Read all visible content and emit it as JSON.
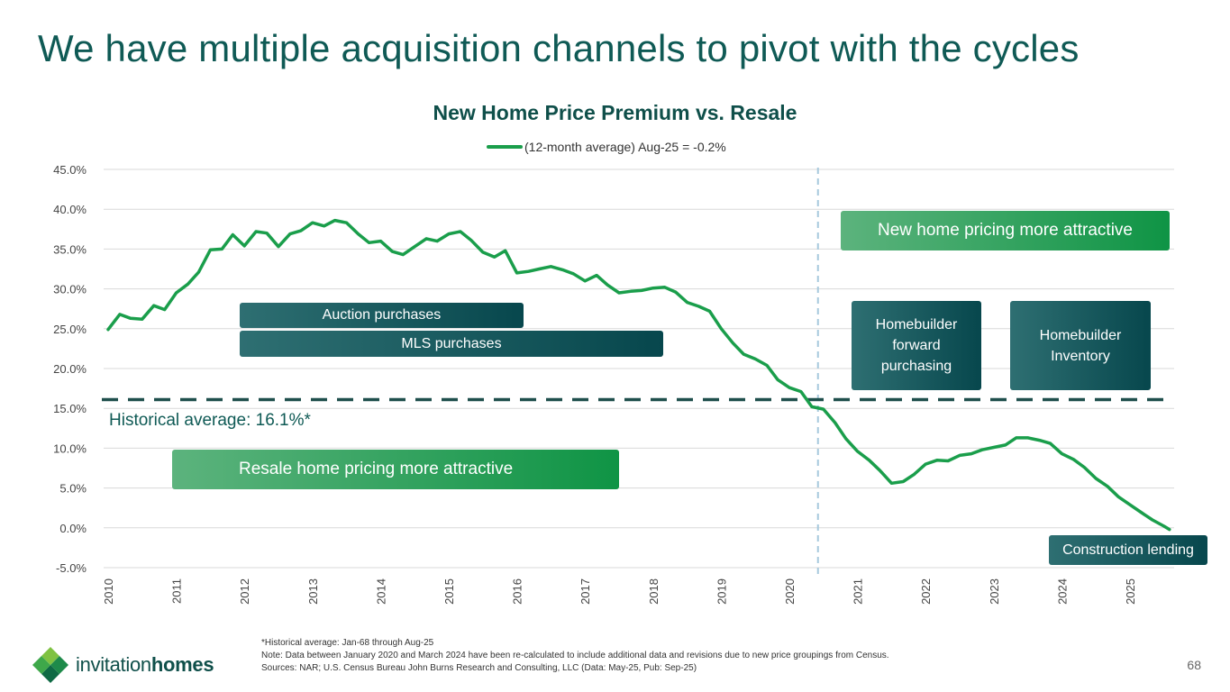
{
  "slide": {
    "title": "We have multiple acquisition channels to pivot with the cycles",
    "page_number": "68"
  },
  "chart_data": {
    "type": "line",
    "title": "New Home Price Premium vs. Resale",
    "series": [
      {
        "name": "(12-month average) Aug-25 = -0.2%",
        "color": "#1a9e4b",
        "x": [
          2010.0,
          2010.17,
          2010.33,
          2010.5,
          2010.67,
          2010.83,
          2011.0,
          2011.17,
          2011.33,
          2011.5,
          2011.67,
          2011.83,
          2012.0,
          2012.17,
          2012.33,
          2012.5,
          2012.67,
          2012.83,
          2013.0,
          2013.17,
          2013.33,
          2013.5,
          2013.67,
          2013.83,
          2014.0,
          2014.17,
          2014.33,
          2014.5,
          2014.67,
          2014.83,
          2015.0,
          2015.17,
          2015.33,
          2015.5,
          2015.67,
          2015.83,
          2016.0,
          2016.17,
          2016.33,
          2016.5,
          2016.67,
          2016.83,
          2017.0,
          2017.17,
          2017.33,
          2017.5,
          2017.67,
          2017.83,
          2018.0,
          2018.17,
          2018.33,
          2018.5,
          2018.67,
          2018.83,
          2019.0,
          2019.17,
          2019.33,
          2019.5,
          2019.67,
          2019.83,
          2020.0,
          2020.17,
          2020.33,
          2020.5,
          2020.67,
          2020.83,
          2021.0,
          2021.17,
          2021.33,
          2021.5,
          2021.67,
          2021.83,
          2022.0,
          2022.17,
          2022.33,
          2022.5,
          2022.67,
          2022.83,
          2023.0,
          2023.17,
          2023.33,
          2023.5,
          2023.67,
          2023.83,
          2024.0,
          2024.17,
          2024.33,
          2024.5,
          2024.67,
          2024.83,
          2025.0,
          2025.17,
          2025.33,
          2025.5,
          2025.58
        ],
        "values": [
          24.9,
          26.8,
          26.3,
          26.2,
          27.9,
          27.4,
          29.5,
          30.6,
          32.1,
          34.9,
          35.0,
          36.8,
          35.4,
          37.2,
          37.0,
          35.3,
          36.9,
          37.3,
          38.3,
          37.9,
          38.6,
          38.3,
          36.9,
          35.8,
          36.0,
          34.7,
          34.3,
          35.3,
          36.3,
          36.0,
          36.9,
          37.2,
          36.1,
          34.6,
          34.0,
          34.8,
          32.0,
          32.2,
          32.5,
          32.8,
          32.4,
          31.9,
          31.0,
          31.7,
          30.5,
          29.5,
          29.7,
          29.8,
          30.1,
          30.2,
          29.6,
          28.3,
          27.8,
          27.2,
          25.0,
          23.2,
          21.8,
          21.2,
          20.4,
          18.6,
          17.6,
          17.1,
          15.2,
          14.9,
          13.2,
          11.2,
          9.6,
          8.5,
          7.2,
          5.6,
          5.8,
          6.7,
          8.0,
          8.5,
          8.4,
          9.1,
          9.3,
          9.8,
          10.1,
          10.4,
          11.3,
          11.3,
          11.0,
          10.6,
          9.3,
          8.6,
          7.6,
          6.2,
          5.2,
          3.9,
          2.9,
          1.9,
          1.0,
          0.2,
          -0.2
        ]
      }
    ],
    "xticks": [
      "2010",
      "2011",
      "2012",
      "2013",
      "2014",
      "2015",
      "2016",
      "2017",
      "2018",
      "2019",
      "2020",
      "2021",
      "2022",
      "2023",
      "2024",
      "2025"
    ],
    "yticks": [
      "45.0%",
      "40.0%",
      "35.0%",
      "30.0%",
      "25.0%",
      "20.0%",
      "15.0%",
      "10.0%",
      "5.0%",
      "0.0%",
      "-5.0%"
    ],
    "ylim": [
      -5,
      45
    ],
    "xlim": [
      2010,
      2025.7
    ],
    "historical_average": 16.1,
    "historical_average_label": "Historical average: 16.1%*",
    "divider_year": 2020.42,
    "annotations": {
      "resale": "Resale home pricing more attractive",
      "new_home": "New home pricing more attractive",
      "auction": "Auction purchases",
      "mls": "MLS purchases",
      "forward": "Homebuilder forward purchasing",
      "inventory": "Homebuilder Inventory",
      "construction": "Construction lending"
    }
  },
  "footer": {
    "line1": "*Historical average: Jan-68 through Aug-25",
    "line2": "Note: Data between January 2020 and March 2024 have been re-calculated to include additional data and revisions due to new price groupings from Census.",
    "line3": "Sources: NAR; U.S. Census Bureau John Burns Research and Consulting, LLC (Data: May-25, Pub: Sep-25)"
  },
  "logo": {
    "word1": "invitation",
    "word2": "homes"
  },
  "colors": {
    "teal": "#0f5a55",
    "line": "#1a9e4b",
    "dash": "#1f4f4c",
    "divider": "#a7c9dd"
  }
}
